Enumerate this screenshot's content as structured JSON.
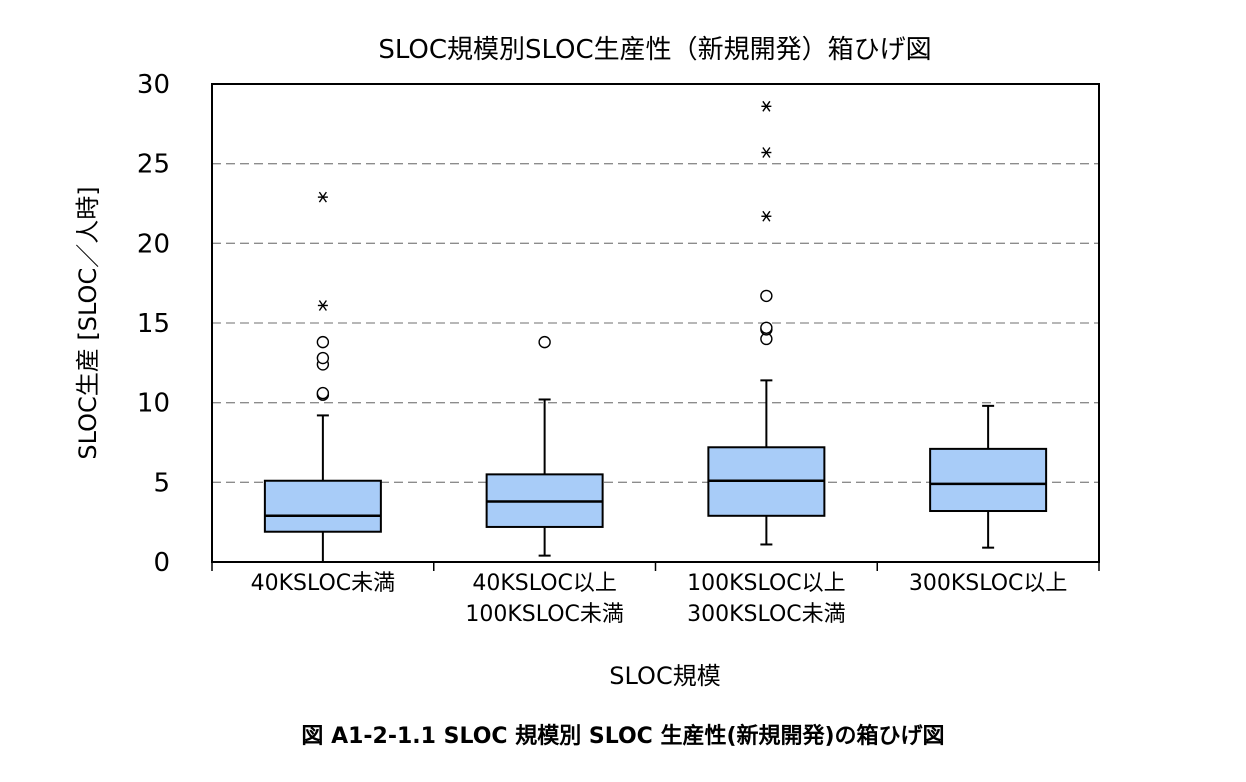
{
  "chart_data": {
    "type": "boxplot",
    "title": "SLOC規模別SLOC生産性（新規開発）箱ひげ図",
    "xlabel": "SLOC規模",
    "ylabel": "SLOC生産 [SLOC／人時]",
    "ylim": [
      0,
      30
    ],
    "yticks": [
      0,
      5,
      10,
      15,
      20,
      25,
      30
    ],
    "grid": "horizontal-dashed",
    "box_color": "#a8ccf8",
    "categories": [
      [
        "40KSLOC未満"
      ],
      [
        "40KSLOC以上",
        "100KSLOC未満"
      ],
      [
        "100KSLOC以上",
        "300KSLOC未満"
      ],
      [
        "300KSLOC以上"
      ]
    ],
    "boxes": [
      {
        "whisker_low": 0.0,
        "q1": 1.9,
        "median": 2.9,
        "q3": 5.1,
        "whisker_high": 9.2,
        "outliers": [
          10.5,
          10.6,
          12.4,
          12.8,
          13.8
        ],
        "extremes": [
          16.1,
          22.9
        ]
      },
      {
        "whisker_low": 0.4,
        "q1": 2.2,
        "median": 3.8,
        "q3": 5.5,
        "whisker_high": 10.2,
        "outliers": [
          13.8
        ],
        "extremes": []
      },
      {
        "whisker_low": 1.1,
        "q1": 2.9,
        "median": 5.1,
        "q3": 7.2,
        "whisker_high": 11.4,
        "outliers": [
          14.0,
          14.6,
          14.7,
          16.7
        ],
        "extremes": [
          21.7,
          25.7,
          28.6
        ]
      },
      {
        "whisker_low": 0.9,
        "q1": 3.2,
        "median": 4.9,
        "q3": 7.1,
        "whisker_high": 9.8,
        "outliers": [],
        "extremes": []
      }
    ]
  },
  "caption": "図 A1-2-1.1 SLOC 規模別 SLOC 生産性(新規開発)の箱ひげ図"
}
